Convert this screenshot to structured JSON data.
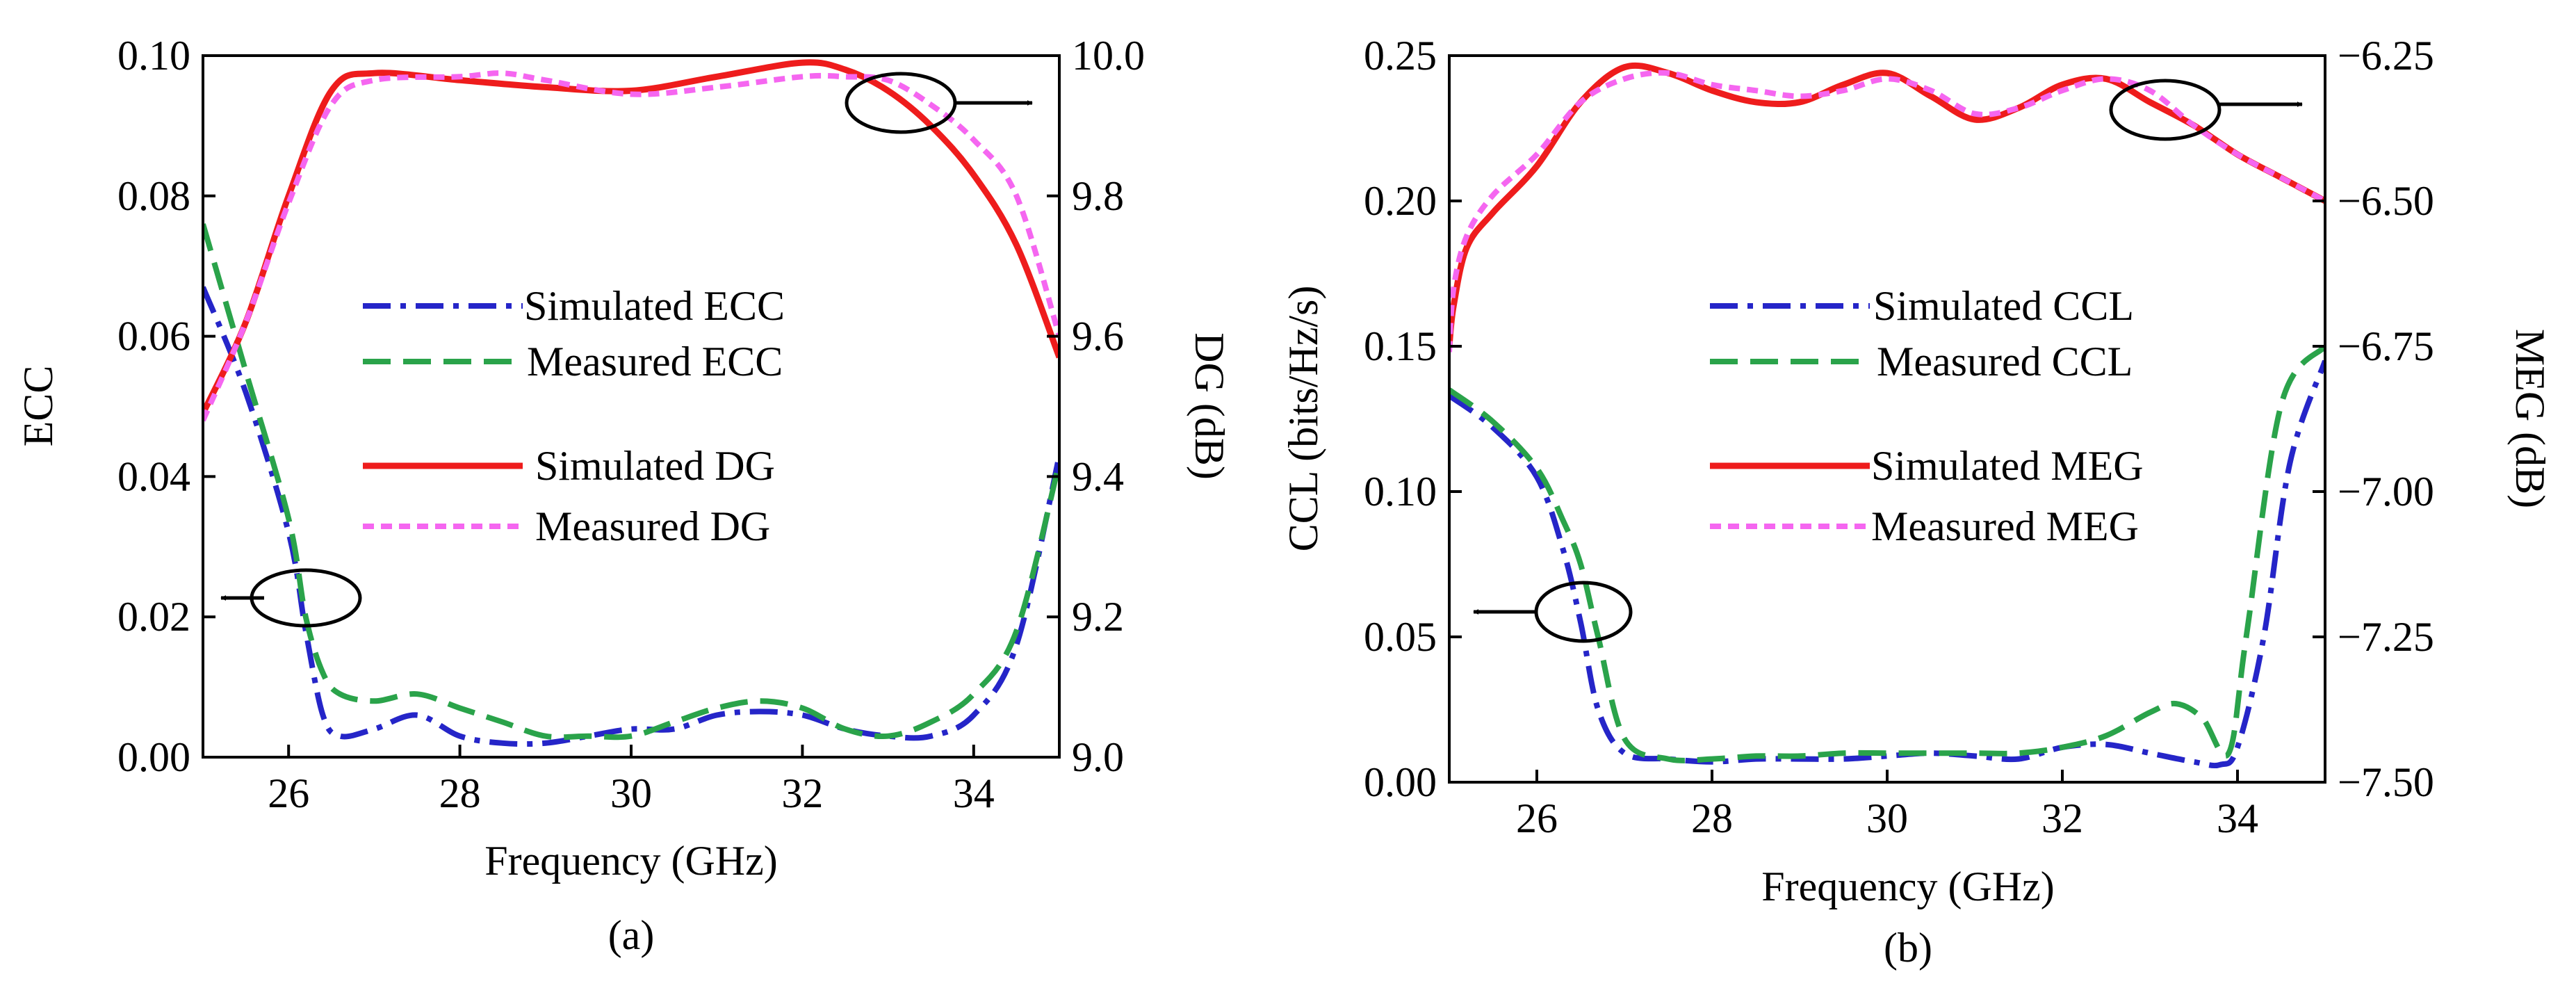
{
  "chart_data": [
    {
      "panel": "(a)",
      "type": "line",
      "xlabel": "Frequency (GHz)",
      "ylabel_left": "ECC",
      "ylabel_right": "DG (dB)",
      "xlim": [
        25,
        35
      ],
      "ylim_left": [
        0,
        0.1
      ],
      "ylim_right": [
        9.0,
        10.0
      ],
      "xticks": [
        26,
        28,
        30,
        32,
        34
      ],
      "xtick_labels": [
        "26",
        "28",
        "30",
        "32",
        "34"
      ],
      "yticks_left": [
        0,
        0.02,
        0.04,
        0.06,
        0.08,
        0.1
      ],
      "ytick_labels_left": [
        "0.00",
        "0.02",
        "0.04",
        "0.06",
        "0.08",
        "0.10"
      ],
      "yticks_right": [
        9.0,
        9.2,
        9.4,
        9.6,
        9.8,
        10.0
      ],
      "ytick_labels_right": [
        "9.0",
        "9.2",
        "9.4",
        "9.6",
        "9.8",
        "10.0"
      ],
      "legend": "center",
      "series": [
        {
          "name": "Simulated ECC",
          "axis": "left",
          "color": "#2525c8",
          "dash": "dashdot",
          "x": [
            25,
            25.5,
            26,
            26.2,
            26.4,
            26.6,
            27,
            27.5,
            28,
            28.5,
            29,
            29.5,
            30,
            30.5,
            31,
            31.5,
            32,
            32.5,
            33,
            33.5,
            34,
            34.5,
            35
          ],
          "y": [
            0.067,
            0.052,
            0.032,
            0.018,
            0.006,
            0.003,
            0.004,
            0.006,
            0.003,
            0.002,
            0.002,
            0.003,
            0.004,
            0.004,
            0.006,
            0.0065,
            0.006,
            0.004,
            0.003,
            0.003,
            0.006,
            0.016,
            0.043
          ]
        },
        {
          "name": "Measured ECC",
          "axis": "left",
          "color": "#2aa34a",
          "dash": "dash",
          "x": [
            25,
            25.5,
            26,
            26.2,
            26.4,
            26.6,
            27,
            27.5,
            28,
            28.5,
            29,
            29.5,
            30,
            30.5,
            31,
            31.5,
            32,
            32.5,
            33,
            33.5,
            34,
            34.5,
            35
          ],
          "y": [
            0.076,
            0.055,
            0.034,
            0.02,
            0.012,
            0.009,
            0.008,
            0.009,
            0.007,
            0.005,
            0.003,
            0.003,
            0.003,
            0.005,
            0.007,
            0.008,
            0.007,
            0.004,
            0.003,
            0.005,
            0.009,
            0.018,
            0.042
          ]
        },
        {
          "name": "Simulated DG",
          "axis": "right",
          "color": "#ee1c1c",
          "dash": "solid",
          "x": [
            25,
            25.5,
            26,
            26.5,
            27,
            28,
            29,
            30,
            31,
            32,
            32.5,
            33,
            33.5,
            34,
            34.5,
            35
          ],
          "y": [
            9.49,
            9.62,
            9.8,
            9.95,
            9.975,
            9.965,
            9.955,
            9.95,
            9.97,
            9.99,
            9.98,
            9.95,
            9.9,
            9.83,
            9.73,
            9.57
          ]
        },
        {
          "name": "Measured DG",
          "axis": "right",
          "color": "#f566f0",
          "dash": "shortdash",
          "x": [
            25,
            25.5,
            26,
            26.5,
            27,
            28,
            28.5,
            29,
            30,
            31,
            32,
            32.5,
            33,
            33.5,
            34,
            34.5,
            35
          ],
          "y": [
            9.48,
            9.62,
            9.79,
            9.93,
            9.965,
            9.97,
            9.975,
            9.965,
            9.945,
            9.955,
            9.97,
            9.97,
            9.965,
            9.93,
            9.88,
            9.8,
            9.6
          ]
        }
      ],
      "caption": "(a)"
    },
    {
      "panel": "(b)",
      "type": "line",
      "xlabel": "Frequency (GHz)",
      "ylabel_left": "CCL (bits/Hz/s)",
      "ylabel_right": "MEG (dB)",
      "xlim": [
        25,
        35
      ],
      "ylim_left": [
        0,
        0.25
      ],
      "ylim_right": [
        -7.5,
        -6.25
      ],
      "xticks": [
        26,
        28,
        30,
        32,
        34
      ],
      "xtick_labels": [
        "26",
        "28",
        "30",
        "32",
        "34"
      ],
      "yticks_left": [
        0,
        0.05,
        0.1,
        0.15,
        0.2,
        0.25
      ],
      "ytick_labels_left": [
        "0.00",
        "0.05",
        "0.10",
        "0.15",
        "0.20",
        "0.25"
      ],
      "yticks_right": [
        -7.5,
        -7.25,
        -7.0,
        -6.75,
        -6.5,
        -6.25
      ],
      "ytick_labels_right": [
        "−7.50",
        "−7.25",
        "−7.00",
        "−6.75",
        "−6.50",
        "−6.25"
      ],
      "legend": "center",
      "series": [
        {
          "name": "Simulated CCL",
          "axis": "left",
          "color": "#2525c8",
          "dash": "dashdot",
          "x": [
            25,
            25.5,
            26,
            26.3,
            26.5,
            26.7,
            27,
            27.5,
            28,
            28.5,
            29,
            29.5,
            30,
            30.5,
            31,
            31.5,
            32,
            32.5,
            33,
            33.5,
            33.8,
            34,
            34.3,
            34.6,
            35
          ],
          "y": [
            0.133,
            0.122,
            0.105,
            0.08,
            0.055,
            0.025,
            0.01,
            0.008,
            0.007,
            0.008,
            0.008,
            0.008,
            0.009,
            0.01,
            0.009,
            0.008,
            0.012,
            0.013,
            0.01,
            0.007,
            0.006,
            0.012,
            0.05,
            0.11,
            0.145
          ]
        },
        {
          "name": "Measured CCL",
          "axis": "left",
          "color": "#2aa34a",
          "dash": "dash",
          "x": [
            25,
            25.5,
            26,
            26.3,
            26.5,
            26.7,
            27,
            27.5,
            28,
            28.5,
            29,
            29.5,
            30,
            30.5,
            31,
            31.5,
            32,
            32.5,
            33,
            33.3,
            33.6,
            33.9,
            34.1,
            34.5,
            35
          ],
          "y": [
            0.135,
            0.124,
            0.108,
            0.09,
            0.075,
            0.05,
            0.015,
            0.008,
            0.008,
            0.009,
            0.009,
            0.01,
            0.01,
            0.01,
            0.01,
            0.01,
            0.012,
            0.016,
            0.024,
            0.027,
            0.022,
            0.01,
            0.05,
            0.13,
            0.15
          ]
        },
        {
          "name": "Simulated MEG",
          "axis": "right",
          "color": "#ee1c1c",
          "dash": "solid",
          "x": [
            25,
            25.05,
            25.2,
            25.5,
            26,
            26.5,
            27,
            27.5,
            28,
            28.5,
            29,
            29.5,
            30,
            30.5,
            31,
            31.5,
            32,
            32.5,
            33,
            33.5,
            34,
            34.5,
            35
          ],
          "y": [
            -6.75,
            -6.68,
            -6.58,
            -6.52,
            -6.44,
            -6.33,
            -6.27,
            -6.28,
            -6.31,
            -6.33,
            -6.33,
            -6.3,
            -6.28,
            -6.32,
            -6.36,
            -6.34,
            -6.3,
            -6.29,
            -6.33,
            -6.37,
            -6.42,
            -6.46,
            -6.5
          ]
        },
        {
          "name": "Measured MEG",
          "axis": "right",
          "color": "#f566f0",
          "dash": "shortdash",
          "x": [
            25,
            25.05,
            25.2,
            25.5,
            26,
            26.5,
            27,
            27.5,
            28,
            28.5,
            29,
            29.5,
            30,
            30.5,
            31,
            31.5,
            32,
            32.5,
            33,
            33.5,
            34,
            34.5,
            35
          ],
          "y": [
            -6.76,
            -6.65,
            -6.56,
            -6.49,
            -6.42,
            -6.33,
            -6.29,
            -6.28,
            -6.3,
            -6.31,
            -6.32,
            -6.31,
            -6.29,
            -6.31,
            -6.35,
            -6.34,
            -6.31,
            -6.29,
            -6.31,
            -6.37,
            -6.42,
            -6.46,
            -6.5
          ]
        }
      ],
      "caption": "(b)"
    }
  ]
}
